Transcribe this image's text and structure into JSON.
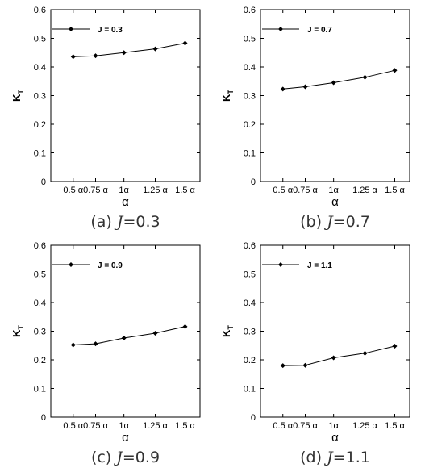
{
  "chart_data": [
    {
      "type": "line",
      "categories": [
        "0.5 α",
        "0.75 α",
        "1α",
        "1.25 α",
        "1.5 α"
      ],
      "series": [
        {
          "name": "J = 0.3",
          "values": [
            0.436,
            0.439,
            0.45,
            0.463,
            0.483
          ]
        }
      ],
      "xlabel": "α",
      "ylabel": "K",
      "ylabel_sub": "T",
      "ylim": [
        0,
        0.6
      ],
      "yticks": [
        "0",
        "0.1",
        "0.2",
        "0.3",
        "0.4",
        "0.5",
        "0.6"
      ],
      "grid": false,
      "legend": "top-left",
      "caption": {
        "prefix": "(a)",
        "var": "J",
        "value": "=0.3"
      }
    },
    {
      "type": "line",
      "categories": [
        "0.5 α",
        "0.75 α",
        "1α",
        "1.25 α",
        "1.5 α"
      ],
      "series": [
        {
          "name": "J = 0.7",
          "values": [
            0.323,
            0.331,
            0.345,
            0.364,
            0.388
          ]
        }
      ],
      "xlabel": "α",
      "ylabel": "K",
      "ylabel_sub": "T",
      "ylim": [
        0,
        0.6
      ],
      "yticks": [
        "0",
        "0.1",
        "0.2",
        "0.3",
        "0.4",
        "0.5",
        "0.6"
      ],
      "grid": false,
      "legend": "top-left",
      "caption": {
        "prefix": "(b)",
        "var": "J",
        "value": "=0.7"
      }
    },
    {
      "type": "line",
      "categories": [
        "0.5 α",
        "0.75 α",
        "1α",
        "1.25 α",
        "1.5 α"
      ],
      "series": [
        {
          "name": "J = 0.9",
          "values": [
            0.252,
            0.256,
            0.276,
            0.293,
            0.316
          ]
        }
      ],
      "xlabel": "α",
      "ylabel": "K",
      "ylabel_sub": "T",
      "ylim": [
        0,
        0.6
      ],
      "yticks": [
        "0",
        "0.1",
        "0.2",
        "0.3",
        "0.4",
        "0.5",
        "0.6"
      ],
      "grid": false,
      "legend": "top-left",
      "caption": {
        "prefix": "(c)",
        "var": "J",
        "value": "=0.9"
      }
    },
    {
      "type": "line",
      "categories": [
        "0.5 α",
        "0.75 α",
        "1α",
        "1.25 α",
        "1.5 α"
      ],
      "series": [
        {
          "name": "J = 1.1",
          "values": [
            0.18,
            0.181,
            0.207,
            0.223,
            0.248
          ]
        }
      ],
      "xlabel": "α",
      "ylabel": "K",
      "ylabel_sub": "T",
      "ylim": [
        0,
        0.6
      ],
      "yticks": [
        "0",
        "0.1",
        "0.2",
        "0.3",
        "0.4",
        "0.5",
        "0.6"
      ],
      "grid": false,
      "legend": "top-left",
      "caption": {
        "prefix": "(d)",
        "var": "J",
        "value": "=1.1"
      }
    }
  ],
  "colors": {
    "line": "#000000",
    "axis": "#000000",
    "caption": "#333333"
  }
}
